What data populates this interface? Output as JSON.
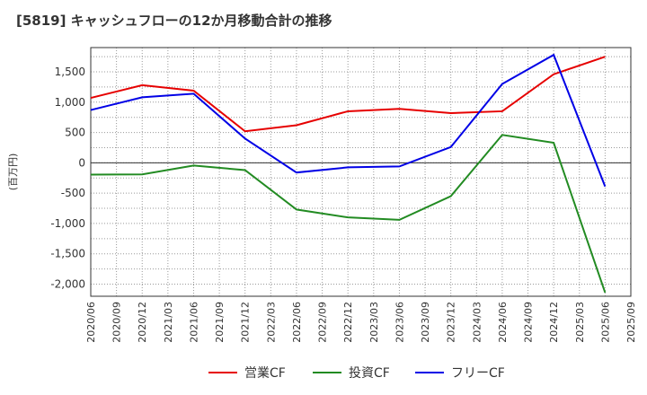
{
  "chart_data": {
    "type": "line",
    "title": "[5819]  キャッシュフローの12か月移動合計の推移",
    "ylabel": "(百万円)",
    "xlabel": "",
    "ylim": [
      -2200,
      1900
    ],
    "yticks": [
      1500,
      1000,
      500,
      0,
      -500,
      -1000,
      -1500,
      -2000
    ],
    "ytick_labels": [
      "1,500",
      "1,000",
      "500",
      "0",
      "-500",
      "-1,000",
      "-1,500",
      "-2,000"
    ],
    "xtick_labels": [
      "2020/06",
      "2020/09",
      "2020/12",
      "2021/03",
      "2021/06",
      "2021/09",
      "2021/12",
      "2022/03",
      "2022/06",
      "2022/09",
      "2022/12",
      "2023/03",
      "2023/06",
      "2023/09",
      "2023/12",
      "2024/03",
      "2024/06",
      "2024/09",
      "2024/12",
      "2025/03",
      "2025/06",
      "2025/09"
    ],
    "x": [
      "2020/06",
      "2020/12",
      "2021/06",
      "2021/12",
      "2022/06",
      "2022/12",
      "2023/06",
      "2023/12",
      "2024/06",
      "2024/12",
      "2025/06"
    ],
    "grid": true,
    "legend_position": "bottom",
    "series": [
      {
        "name": "営業CF",
        "color": "#e60000",
        "values": [
          1070,
          1280,
          1190,
          520,
          620,
          850,
          890,
          820,
          850,
          1460,
          1750
        ]
      },
      {
        "name": "投資CF",
        "color": "#228b22",
        "values": [
          -195,
          -190,
          -45,
          -120,
          -770,
          -900,
          -940,
          -550,
          460,
          330,
          -2140
        ]
      },
      {
        "name": "フリーCF",
        "color": "#0000e6",
        "values": [
          870,
          1080,
          1140,
          400,
          -160,
          -75,
          -60,
          260,
          1300,
          1780,
          -390
        ]
      }
    ]
  }
}
